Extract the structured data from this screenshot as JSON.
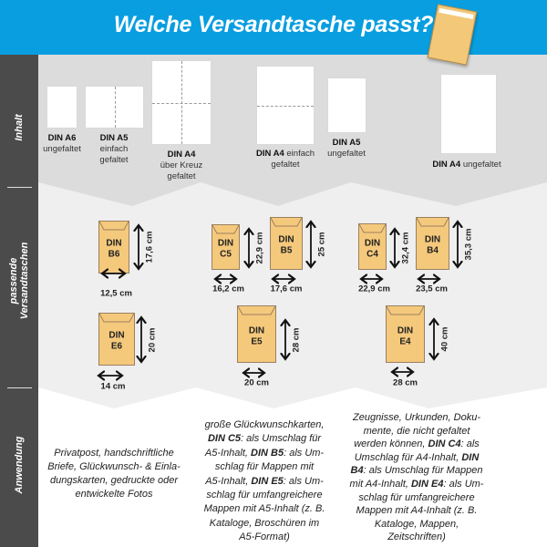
{
  "header": {
    "title": "Welche Versandtasche passt?",
    "icon": "envelope-icon"
  },
  "colors": {
    "header": "#089ee0",
    "sidebar": "#4b4b4b",
    "envelope": "#f5c97c",
    "section1": "#dcdcdc",
    "section2": "#efefef"
  },
  "sidebar": {
    "inhalt": "Inhalt",
    "versand_line1": "passende",
    "versand_line2": "Versandtaschen",
    "anwendung": "Anwendung"
  },
  "contents": [
    {
      "lines": [
        [
          {
            "t": "DIN A6",
            "b": true
          }
        ],
        [
          {
            "t": "ungefaltet"
          }
        ]
      ],
      "fold": "none"
    },
    {
      "lines": [
        [
          {
            "t": "DIN A5",
            "b": true
          }
        ],
        [
          {
            "t": "einfach"
          }
        ],
        [
          {
            "t": "gefaltet"
          }
        ]
      ],
      "fold": "vertical"
    },
    {
      "lines": [
        [
          {
            "t": "DIN A4",
            "b": true
          }
        ],
        [
          {
            "t": "über Kreuz"
          }
        ],
        [
          {
            "t": "gefaltet"
          }
        ]
      ],
      "fold": "cross"
    },
    {
      "lines": [
        [
          {
            "t": "DIN A4",
            "b": true
          },
          {
            "t": " einfach"
          }
        ],
        [
          {
            "t": "gefaltet"
          }
        ]
      ],
      "fold": "horizontal"
    },
    {
      "lines": [
        [
          {
            "t": "DIN A5",
            "b": true
          }
        ],
        [
          {
            "t": "ungefaltet"
          }
        ]
      ],
      "fold": "none"
    },
    {
      "lines": [
        [
          {
            "t": "DIN A4",
            "b": true
          },
          {
            "t": " ungefaltet"
          }
        ]
      ],
      "fold": "none"
    }
  ],
  "envelopes": [
    {
      "l1": "DIN",
      "l2": "B6",
      "width": "12,5 cm",
      "height": "17,6 cm"
    },
    {
      "l1": "DIN",
      "l2": "E6",
      "width": "14 cm",
      "height": "20 cm"
    },
    {
      "l1": "DIN",
      "l2": "C5",
      "width": "16,2 cm",
      "height": "22,9 cm"
    },
    {
      "l1": "DIN",
      "l2": "B5",
      "width": "17,6 cm",
      "height": "25 cm"
    },
    {
      "l1": "DIN",
      "l2": "E5",
      "width": "20 cm",
      "height": "28 cm"
    },
    {
      "l1": "DIN",
      "l2": "C4",
      "width": "22,9 cm",
      "height": "32,4 cm"
    },
    {
      "l1": "DIN",
      "l2": "B4",
      "width": "23,5 cm",
      "height": "35,3 cm"
    },
    {
      "l1": "DIN",
      "l2": "E4",
      "width": "28 cm",
      "height": "40 cm"
    }
  ],
  "usage": [
    [
      [
        {
          "t": "Privatpost, handschriftliche"
        }
      ],
      [
        {
          "t": "Briefe, Glückwunsch- & Einla-"
        }
      ],
      [
        {
          "t": "dungskarten, gedruckte oder"
        }
      ],
      [
        {
          "t": "entwickelte Fotos"
        }
      ]
    ],
    [
      [
        {
          "t": "große Glückwunschkarten,"
        }
      ],
      [
        {
          "t": "DIN C5",
          "b": true
        },
        {
          "t": ": als Umschlag für"
        }
      ],
      [
        {
          "t": "A5-Inhalt, "
        },
        {
          "t": "DIN B5",
          "b": true
        },
        {
          "t": ": als Um-"
        }
      ],
      [
        {
          "t": "schlag für Mappen mit"
        }
      ],
      [
        {
          "t": "A5-Inhalt, "
        },
        {
          "t": "DIN E5",
          "b": true
        },
        {
          "t": ": als Um-"
        }
      ],
      [
        {
          "t": "schlag für umfangreichere"
        }
      ],
      [
        {
          "t": "Mappen mit A5-Inhalt (z. B."
        }
      ],
      [
        {
          "t": "Kataloge, Broschüren im"
        }
      ],
      [
        {
          "t": "A5-Format)"
        }
      ]
    ],
    [
      [
        {
          "t": "Zeugnisse, Urkunden, Doku-"
        }
      ],
      [
        {
          "t": "mente, die nicht gefaltet"
        }
      ],
      [
        {
          "t": "werden können, "
        },
        {
          "t": "DIN C4",
          "b": true
        },
        {
          "t": ": als"
        }
      ],
      [
        {
          "t": "Umschlag für A4-Inhalt, "
        },
        {
          "t": "DIN",
          "b": true
        }
      ],
      [
        {
          "t": "B4",
          "b": true
        },
        {
          "t": ": als Umschlag für Mappen"
        }
      ],
      [
        {
          "t": "mit A4-Inhalt, "
        },
        {
          "t": "DIN E4",
          "b": true
        },
        {
          "t": ": als Um-"
        }
      ],
      [
        {
          "t": "schlag für umfangreichere"
        }
      ],
      [
        {
          "t": "Mappen mit A4-Inhalt (z. B."
        }
      ],
      [
        {
          "t": "Kataloge, Mappen,"
        }
      ],
      [
        {
          "t": "Zeitschriften)"
        }
      ]
    ]
  ]
}
